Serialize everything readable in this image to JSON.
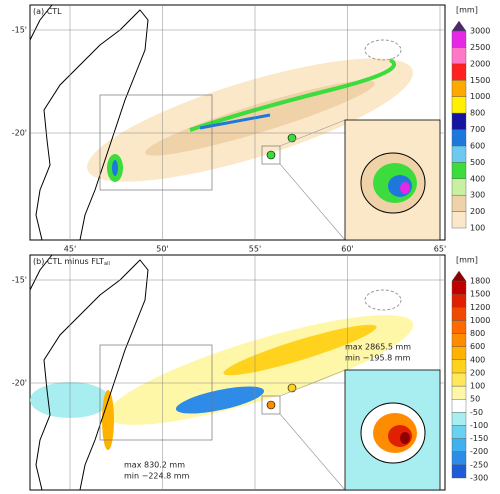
{
  "panels": [
    {
      "title": "(a) CTL",
      "unit": "[mm]",
      "colorbar": {
        "labels": [
          "100",
          "200",
          "300",
          "400",
          "500",
          "600",
          "700",
          "800",
          "1000",
          "1500",
          "2000",
          "2500",
          "3000"
        ],
        "colors": [
          "#fbe8c8",
          "#f0d2a8",
          "#c8f0a0",
          "#3cdc3c",
          "#6ec8f0",
          "#1e78dc",
          "#1414a0",
          "#fff000",
          "#ffa800",
          "#ff2020",
          "#ff78c8",
          "#e628e6"
        ],
        "top": "#50286e"
      },
      "annotations": []
    },
    {
      "title": "(b) CTL minus FLT",
      "subscript": "all",
      "unit": "[mm]",
      "colorbar": {
        "labels": [
          "-300",
          "-250",
          "-200",
          "-150",
          "-100",
          "-50",
          "50",
          "100",
          "200",
          "400",
          "600",
          "800",
          "1000",
          "1200",
          "1500",
          "1800"
        ],
        "colors": [
          "#1e5bd8",
          "#2f8be8",
          "#3fb0f0",
          "#6ad2f0",
          "#a8eef0",
          "#ffffff",
          "#fff7a8",
          "#ffe85c",
          "#ffd21e",
          "#ffb300",
          "#ff8c00",
          "#ff6a00",
          "#f04a00",
          "#e02000",
          "#c00000"
        ],
        "top": "#900000"
      },
      "annotations": [
        "max 830.2 mm",
        "min −224.8 mm",
        "max 2865.5 mm",
        "min −195.8 mm"
      ]
    }
  ],
  "lon_ticks": [
    "45'",
    "50'",
    "55'",
    "60'",
    "65'"
  ],
  "lat_ticks": [
    "-15'",
    "-20'"
  ]
}
